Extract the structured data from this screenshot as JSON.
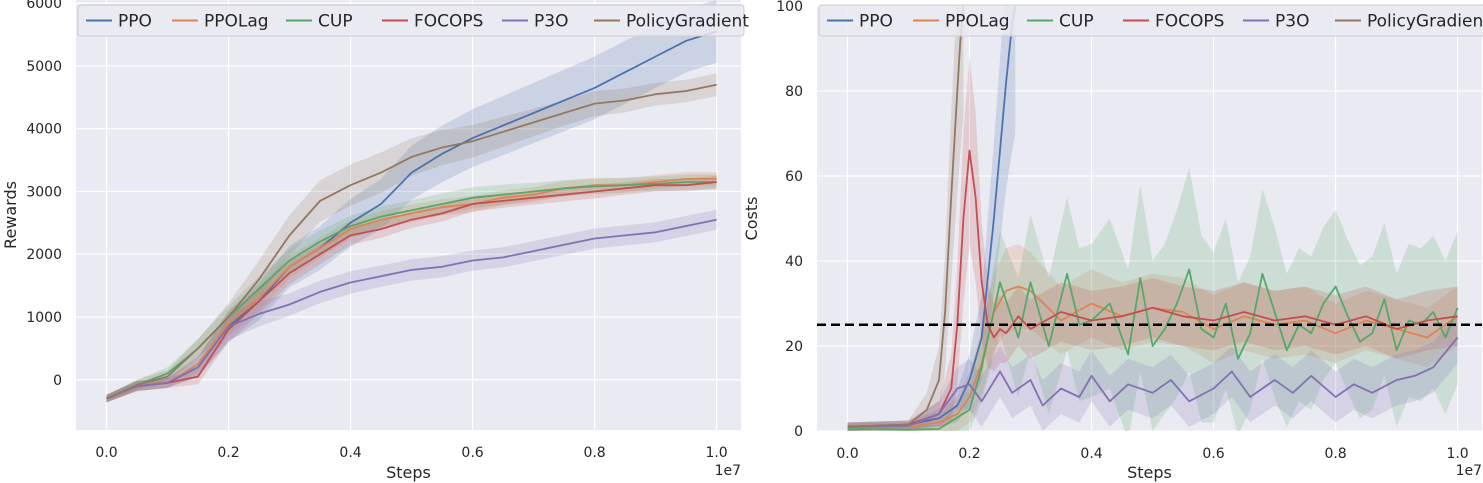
{
  "chart_data": [
    {
      "type": "line",
      "xlabel": "Steps",
      "ylabel": "Rewards",
      "x_offset_label": "1e7",
      "xlim": [
        -0.05,
        1.04
      ],
      "ylim": [
        -800,
        6050
      ],
      "xticks": [
        0.0,
        0.2,
        0.4,
        0.6,
        0.8,
        1.0
      ],
      "xtick_labels": [
        "0.0",
        "0.2",
        "0.4",
        "0.6",
        "0.8",
        "1.0"
      ],
      "yticks": [
        0,
        1000,
        2000,
        3000,
        4000,
        5000,
        6000
      ],
      "ytick_labels": [
        "0",
        "1000",
        "2000",
        "3000",
        "4000",
        "5000",
        "6000"
      ],
      "grid": true,
      "legend": "top",
      "series": [
        {
          "name": "PPO",
          "color": "#4c72b0",
          "x": [
            0,
            0.05,
            0.1,
            0.15,
            0.2,
            0.25,
            0.3,
            0.35,
            0.4,
            0.45,
            0.5,
            0.55,
            0.6,
            0.65,
            0.7,
            0.75,
            0.8,
            0.85,
            0.9,
            0.95,
            1.0
          ],
          "y": [
            -300,
            -100,
            -50,
            200,
            850,
            1250,
            1800,
            2100,
            2500,
            2800,
            3300,
            3600,
            3850,
            4050,
            4250,
            4450,
            4650,
            4900,
            5150,
            5400,
            5550
          ],
          "band": [
            60,
            80,
            80,
            150,
            250,
            300,
            330,
            350,
            380,
            400,
            430,
            450,
            460,
            470,
            480,
            490,
            500,
            500,
            500,
            500,
            500
          ]
        },
        {
          "name": "PPOLag",
          "color": "#dd8452",
          "x": [
            0,
            0.05,
            0.1,
            0.15,
            0.2,
            0.25,
            0.3,
            0.35,
            0.4,
            0.45,
            0.5,
            0.55,
            0.6,
            0.65,
            0.7,
            0.75,
            0.8,
            0.85,
            0.9,
            0.95,
            1.0
          ],
          "y": [
            -300,
            -100,
            -50,
            250,
            900,
            1300,
            1800,
            2100,
            2400,
            2550,
            2650,
            2750,
            2800,
            2900,
            2950,
            3050,
            3100,
            3100,
            3150,
            3200,
            3200
          ],
          "band": [
            60,
            80,
            80,
            130,
            200,
            200,
            180,
            160,
            150,
            140,
            140,
            130,
            130,
            120,
            120,
            120,
            120,
            110,
            110,
            110,
            110
          ]
        },
        {
          "name": "CUP",
          "color": "#55a868",
          "x": [
            0,
            0.05,
            0.1,
            0.15,
            0.2,
            0.25,
            0.3,
            0.35,
            0.4,
            0.45,
            0.5,
            0.55,
            0.6,
            0.65,
            0.7,
            0.75,
            0.8,
            0.85,
            0.9,
            0.95,
            1.0
          ],
          "y": [
            -300,
            -80,
            100,
            500,
            1000,
            1450,
            1900,
            2200,
            2450,
            2600,
            2700,
            2800,
            2900,
            2950,
            3000,
            3050,
            3080,
            3100,
            3120,
            3150,
            3150
          ],
          "band": [
            60,
            80,
            100,
            150,
            180,
            190,
            190,
            180,
            160,
            160,
            160,
            170,
            170,
            160,
            140,
            130,
            120,
            120,
            120,
            120,
            120
          ]
        },
        {
          "name": "FOCOPS",
          "color": "#c44e52",
          "x": [
            0,
            0.05,
            0.1,
            0.15,
            0.2,
            0.25,
            0.3,
            0.35,
            0.4,
            0.45,
            0.5,
            0.55,
            0.6,
            0.65,
            0.7,
            0.75,
            0.8,
            0.85,
            0.9,
            0.95,
            1.0
          ],
          "y": [
            -300,
            -100,
            -50,
            50,
            800,
            1250,
            1700,
            2000,
            2300,
            2400,
            2550,
            2650,
            2800,
            2850,
            2900,
            2950,
            3000,
            3050,
            3100,
            3100,
            3150
          ],
          "band": [
            60,
            80,
            80,
            120,
            200,
            200,
            180,
            160,
            150,
            140,
            130,
            130,
            120,
            110,
            110,
            110,
            110,
            100,
            100,
            100,
            100
          ]
        },
        {
          "name": "P3O",
          "color": "#8172b3",
          "x": [
            0,
            0.05,
            0.1,
            0.15,
            0.2,
            0.25,
            0.3,
            0.35,
            0.4,
            0.45,
            0.5,
            0.55,
            0.6,
            0.65,
            0.7,
            0.75,
            0.8,
            0.85,
            0.9,
            0.95,
            1.0
          ],
          "y": [
            -300,
            -100,
            -50,
            200,
            850,
            1050,
            1200,
            1400,
            1550,
            1650,
            1750,
            1800,
            1900,
            1950,
            2050,
            2150,
            2250,
            2300,
            2350,
            2450,
            2550
          ],
          "band": [
            60,
            80,
            80,
            150,
            220,
            200,
            180,
            180,
            180,
            170,
            170,
            170,
            160,
            160,
            160,
            160,
            160,
            160,
            160,
            160,
            160
          ]
        },
        {
          "name": "PolicyGradient",
          "color": "#937860",
          "x": [
            0,
            0.05,
            0.1,
            0.15,
            0.2,
            0.25,
            0.3,
            0.35,
            0.4,
            0.45,
            0.5,
            0.55,
            0.6,
            0.65,
            0.7,
            0.75,
            0.8,
            0.85,
            0.9,
            0.95,
            1.0
          ],
          "y": [
            -300,
            -80,
            50,
            500,
            1000,
            1600,
            2300,
            2850,
            3100,
            3300,
            3550,
            3700,
            3800,
            3950,
            4100,
            4250,
            4400,
            4450,
            4550,
            4600,
            4700
          ],
          "band": [
            60,
            80,
            100,
            150,
            220,
            300,
            320,
            330,
            330,
            320,
            300,
            280,
            260,
            240,
            220,
            200,
            200,
            190,
            180,
            180,
            180
          ]
        }
      ]
    },
    {
      "type": "line",
      "xlabel": "Steps",
      "ylabel": "Costs",
      "x_offset_label": "1e7",
      "xlim": [
        -0.05,
        1.04
      ],
      "ylim": [
        0,
        100
      ],
      "xticks": [
        0.0,
        0.2,
        0.4,
        0.6,
        0.8,
        1.0
      ],
      "xtick_labels": [
        "0.0",
        "0.2",
        "0.4",
        "0.6",
        "0.8",
        "1.0"
      ],
      "yticks": [
        0,
        20,
        40,
        60,
        80,
        100
      ],
      "ytick_labels": [
        "0",
        "20",
        "40",
        "60",
        "80",
        "100"
      ],
      "grid": true,
      "legend": "top",
      "threshold": 25,
      "threshold_color": "#000000",
      "series": [
        {
          "name": "PPO",
          "color": "#4c72b0",
          "x": [
            0,
            0.1,
            0.15,
            0.18,
            0.2,
            0.22,
            0.24,
            0.26,
            0.27,
            0.275
          ],
          "y": [
            1,
            1.5,
            3,
            6,
            12,
            22,
            50,
            82,
            96,
            100
          ],
          "band": [
            1,
            1,
            2,
            4,
            6,
            10,
            18,
            25,
            30,
            30
          ]
        },
        {
          "name": "PPOLag",
          "color": "#dd8452",
          "x": [
            0,
            0.1,
            0.15,
            0.18,
            0.2,
            0.22,
            0.24,
            0.26,
            0.28,
            0.3,
            0.35,
            0.4,
            0.45,
            0.5,
            0.55,
            0.6,
            0.65,
            0.7,
            0.75,
            0.8,
            0.85,
            0.9,
            0.95,
            1.0
          ],
          "y": [
            1,
            1,
            2,
            4,
            8,
            16,
            28,
            33,
            34,
            33,
            26,
            30,
            27,
            29,
            28,
            24,
            27,
            25,
            26,
            23,
            26,
            24,
            22,
            27
          ],
          "band": [
            1,
            1,
            2,
            4,
            6,
            8,
            9,
            10,
            10,
            9,
            8,
            8,
            8,
            8,
            8,
            8,
            8,
            8,
            8,
            7,
            7,
            7,
            7,
            7
          ]
        },
        {
          "name": "CUP",
          "color": "#55a868",
          "x": [
            0,
            0.1,
            0.15,
            0.2,
            0.22,
            0.25,
            0.28,
            0.3,
            0.33,
            0.36,
            0.38,
            0.4,
            0.43,
            0.46,
            0.48,
            0.5,
            0.52,
            0.54,
            0.56,
            0.58,
            0.6,
            0.62,
            0.64,
            0.66,
            0.68,
            0.7,
            0.72,
            0.74,
            0.76,
            0.78,
            0.8,
            0.82,
            0.84,
            0.86,
            0.88,
            0.9,
            0.92,
            0.94,
            0.96,
            0.98,
            1.0
          ],
          "y": [
            0.5,
            0.3,
            0.5,
            5,
            15,
            35,
            22,
            35,
            20,
            37,
            25,
            26,
            30,
            18,
            36,
            20,
            24,
            30,
            38,
            24,
            22,
            30,
            17,
            23,
            37,
            28,
            19,
            25,
            23,
            30,
            34,
            27,
            21,
            23,
            31,
            19,
            26,
            25,
            28,
            22,
            29
          ],
          "band": [
            1,
            1,
            1,
            5,
            8,
            12,
            14,
            16,
            16,
            18,
            18,
            18,
            20,
            20,
            22,
            20,
            20,
            22,
            24,
            22,
            20,
            20,
            18,
            18,
            20,
            20,
            18,
            18,
            18,
            18,
            18,
            18,
            18,
            18,
            18,
            18,
            18,
            18,
            18,
            18,
            18
          ]
        },
        {
          "name": "FOCOPS",
          "color": "#c44e52",
          "x": [
            0,
            0.1,
            0.15,
            0.17,
            0.18,
            0.19,
            0.2,
            0.21,
            0.22,
            0.23,
            0.24,
            0.25,
            0.26,
            0.28,
            0.3,
            0.35,
            0.4,
            0.45,
            0.5,
            0.55,
            0.6,
            0.65,
            0.7,
            0.75,
            0.8,
            0.85,
            0.9,
            0.95,
            1.0
          ],
          "y": [
            1,
            1.5,
            4,
            10,
            25,
            50,
            66,
            55,
            35,
            25,
            22,
            24,
            23,
            27,
            24,
            28,
            26,
            27,
            29,
            27,
            26,
            28,
            26,
            27,
            25,
            27,
            24,
            26,
            27
          ],
          "band": [
            1,
            1,
            3,
            8,
            14,
            20,
            22,
            20,
            14,
            10,
            8,
            8,
            7,
            7,
            7,
            7,
            7,
            7,
            7,
            7,
            7,
            7,
            7,
            7,
            7,
            7,
            7,
            7,
            7
          ]
        },
        {
          "name": "P3O",
          "color": "#8172b3",
          "x": [
            0,
            0.1,
            0.15,
            0.18,
            0.2,
            0.22,
            0.25,
            0.27,
            0.3,
            0.32,
            0.35,
            0.38,
            0.4,
            0.43,
            0.46,
            0.5,
            0.53,
            0.56,
            0.6,
            0.63,
            0.66,
            0.7,
            0.73,
            0.76,
            0.8,
            0.83,
            0.86,
            0.9,
            0.93,
            0.96,
            1.0
          ],
          "y": [
            1,
            1.2,
            4,
            10,
            11,
            7,
            14,
            9,
            12,
            6,
            10,
            8,
            13,
            7,
            11,
            9,
            12,
            7,
            10,
            14,
            8,
            12,
            9,
            13,
            8,
            11,
            9,
            12,
            13,
            15,
            22
          ],
          "band": [
            1,
            1,
            3,
            5,
            6,
            6,
            6,
            6,
            6,
            6,
            6,
            6,
            6,
            6,
            6,
            6,
            6,
            6,
            6,
            6,
            6,
            6,
            6,
            6,
            6,
            6,
            6,
            6,
            6,
            6,
            6
          ]
        },
        {
          "name": "PolicyGradient",
          "color": "#937860",
          "x": [
            0,
            0.1,
            0.13,
            0.15,
            0.16,
            0.17,
            0.18,
            0.185,
            0.19
          ],
          "y": [
            1,
            1.5,
            5,
            12,
            28,
            55,
            80,
            92,
            100
          ],
          "band": [
            1,
            1,
            4,
            8,
            14,
            20,
            24,
            26,
            26
          ]
        }
      ]
    }
  ]
}
